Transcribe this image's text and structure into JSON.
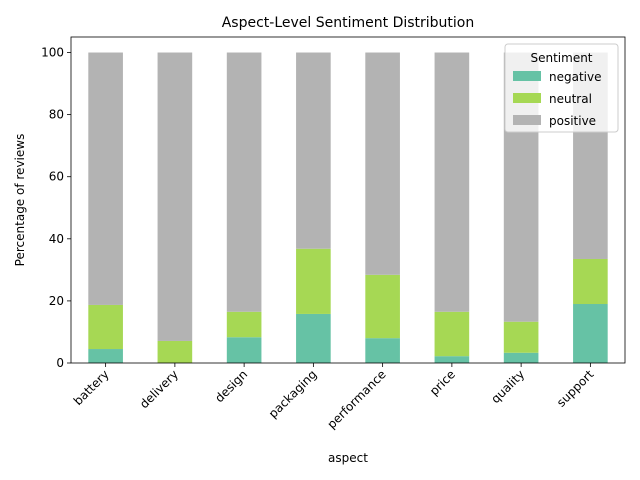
{
  "chart_data": {
    "type": "bar",
    "stacked": true,
    "title": "Aspect-Level Sentiment Distribution",
    "xlabel": "aspect",
    "ylabel": "Percentage of reviews",
    "ylim": [
      0,
      105
    ],
    "yticks": [
      0,
      20,
      40,
      60,
      80,
      100
    ],
    "categories": [
      "battery",
      "delivery",
      "design",
      "packaging",
      "performance",
      "price",
      "quality",
      "support"
    ],
    "series": [
      {
        "name": "negative",
        "color": "#66c2a5",
        "values": [
          4.5,
          0,
          8.3,
          15.8,
          8.0,
          2.2,
          3.3,
          19.0
        ]
      },
      {
        "name": "neutral",
        "color": "#a6d854",
        "values": [
          14.2,
          7.1,
          8.2,
          21.0,
          20.4,
          14.3,
          10.0,
          14.5
        ]
      },
      {
        "name": "positive",
        "color": "#b3b3b3",
        "values": [
          81.3,
          92.9,
          83.5,
          63.2,
          71.6,
          83.5,
          86.7,
          66.5
        ]
      }
    ],
    "legend": {
      "title": "Sentiment",
      "position": "top-right"
    },
    "grid": false
  }
}
